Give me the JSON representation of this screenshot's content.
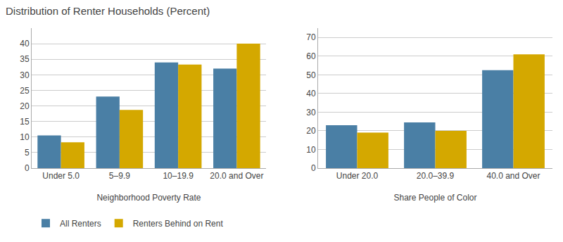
{
  "chart_data": [
    {
      "type": "bar",
      "title": "Distribution of Renter Households (Percent)",
      "xlabel": "Neighborhood Poverty Rate",
      "categories": [
        "Under 5.0",
        "5–9.9",
        "10–19.9",
        "20.0 and Over"
      ],
      "series": [
        {
          "name": "All Renters",
          "color": "#4a7fa5",
          "values": [
            10.5,
            23.0,
            34.0,
            32.0
          ]
        },
        {
          "name": "Renters Behind on Rent",
          "color": "#d4a800",
          "values": [
            8.3,
            18.7,
            33.3,
            40.0
          ]
        }
      ],
      "ylim": [
        0,
        45
      ],
      "yticks": [
        0,
        5,
        10,
        15,
        20,
        25,
        30,
        35,
        40
      ],
      "grid": true,
      "legend": "lower left"
    },
    {
      "type": "bar",
      "xlabel": "Share People of Color",
      "categories": [
        "Under 20.0",
        "20.0–39.9",
        "40.0 and Over"
      ],
      "series": [
        {
          "name": "All Renters",
          "color": "#4a7fa5",
          "values": [
            23.0,
            24.5,
            52.5
          ]
        },
        {
          "name": "Renters Behind on Rent",
          "color": "#d4a800",
          "values": [
            19.0,
            20.0,
            61.0
          ]
        }
      ],
      "ylim": [
        0,
        75
      ],
      "yticks": [
        0,
        10,
        20,
        30,
        40,
        50,
        60,
        70
      ],
      "grid": true
    }
  ]
}
